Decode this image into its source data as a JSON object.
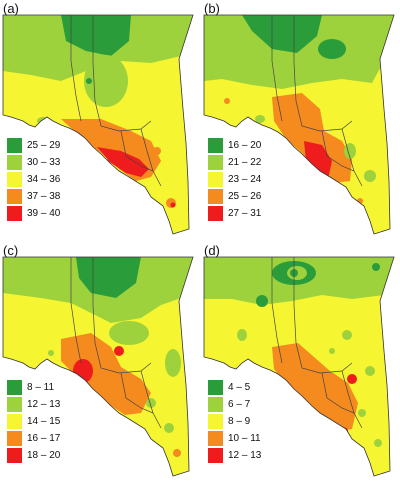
{
  "colors": {
    "c1": "#2a9d3a",
    "c2": "#9dd23c",
    "c3": "#f5f531",
    "c4": "#f58a1f",
    "c5": "#ee1c1c"
  },
  "panels": [
    {
      "id": "a",
      "label": "(a)",
      "legend": [
        {
          "range": "25 – 29",
          "color": "#2a9d3a"
        },
        {
          "range": "30 – 33",
          "color": "#9dd23c"
        },
        {
          "range": "34 – 36",
          "color": "#f5f531"
        },
        {
          "range": "37 – 38",
          "color": "#f58a1f"
        },
        {
          "range": "39 – 40",
          "color": "#ee1c1c"
        }
      ]
    },
    {
      "id": "b",
      "label": "(b)",
      "legend": [
        {
          "range": "16 – 20",
          "color": "#2a9d3a"
        },
        {
          "range": "21 – 22",
          "color": "#9dd23c"
        },
        {
          "range": "23 – 24",
          "color": "#f5f531"
        },
        {
          "range": "25 – 26",
          "color": "#f58a1f"
        },
        {
          "range": "27 – 31",
          "color": "#ee1c1c"
        }
      ]
    },
    {
      "id": "c",
      "label": "(c)",
      "legend": [
        {
          "range": "8 – 11",
          "color": "#2a9d3a"
        },
        {
          "range": "12 – 13",
          "color": "#9dd23c"
        },
        {
          "range": "14 – 15",
          "color": "#f5f531"
        },
        {
          "range": "16 – 17",
          "color": "#f58a1f"
        },
        {
          "range": "18 – 20",
          "color": "#ee1c1c"
        }
      ]
    },
    {
      "id": "d",
      "label": "(d)",
      "legend": [
        {
          "range": "4 – 5",
          "color": "#2a9d3a"
        },
        {
          "range": "6 – 7",
          "color": "#9dd23c"
        },
        {
          "range": "8 – 9",
          "color": "#f5f531"
        },
        {
          "range": "10 – 11",
          "color": "#f58a1f"
        },
        {
          "range": "12 – 13",
          "color": "#ee1c1c"
        }
      ]
    }
  ]
}
